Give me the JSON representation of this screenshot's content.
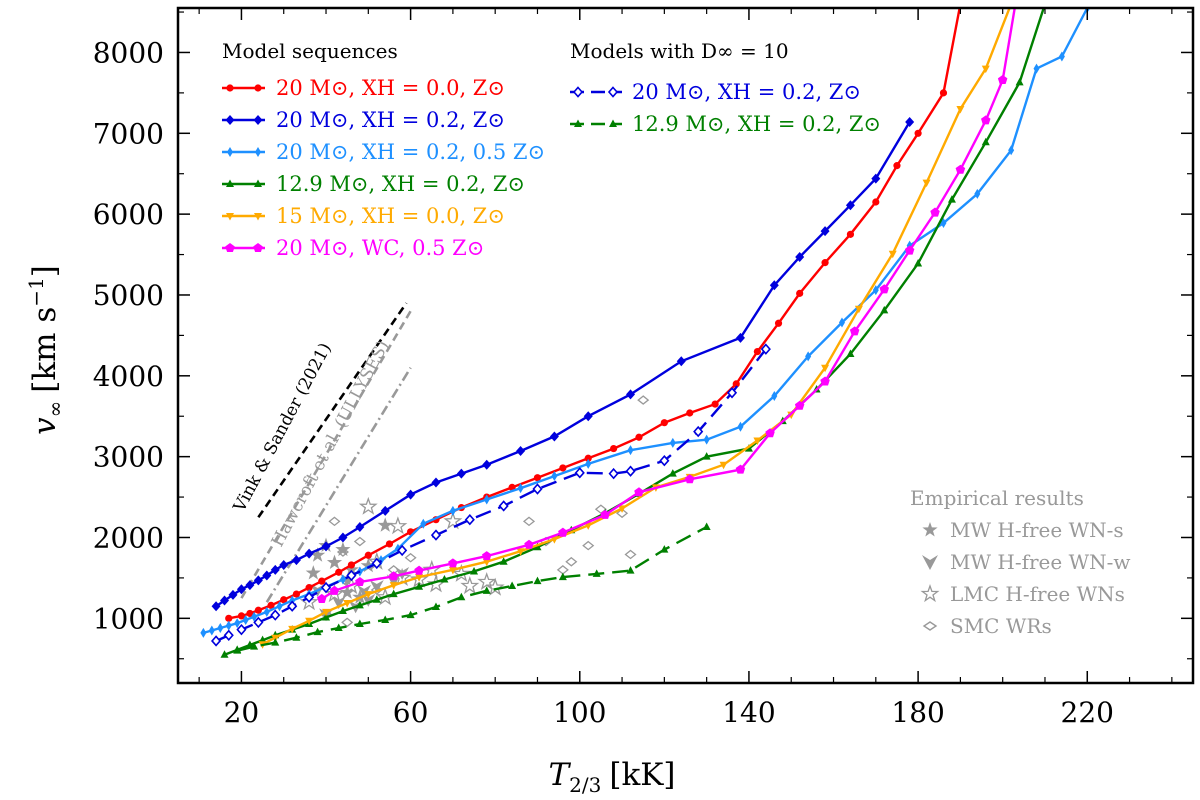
{
  "chart_data": {
    "type": "line",
    "xlabel_main": "T",
    "xlabel_sub": "2/3",
    "xlabel_unit": "[kK]",
    "ylabel_main": "v",
    "ylabel_sub": "∞",
    "ylabel_unit": "[km s",
    "ylabel_exp": "−1",
    "ylabel_close": "]",
    "xlim": [
      5,
      245
    ],
    "ylim": [
      200,
      8550
    ],
    "xticks": [
      20,
      60,
      100,
      140,
      180,
      220
    ],
    "xtick_labels": [
      "20",
      "60",
      "100",
      "140",
      "180",
      "220"
    ],
    "yticks": [
      1000,
      2000,
      3000,
      4000,
      5000,
      6000,
      7000,
      8000
    ],
    "ytick_labels": [
      "1000",
      "2000",
      "3000",
      "4000",
      "5000",
      "6000",
      "7000",
      "8000"
    ],
    "legend_model": {
      "title": "Model sequences",
      "entries": [
        {
          "label": "20 M⊙, XH = 0.0, Z⊙",
          "color": "#ff0000"
        },
        {
          "label": "20 M⊙, XH = 0.2, Z⊙",
          "color": "#0000dd"
        },
        {
          "label": "20 M⊙, XH = 0.2, 0.5 Z⊙",
          "color": "#1e90ff"
        },
        {
          "label": "12.9 M⊙, XH = 0.2, Z⊙",
          "color": "#008000"
        },
        {
          "label": "15 M⊙, XH = 0.0, Z⊙",
          "color": "#ffaa00"
        },
        {
          "label": "20 M⊙, WC, 0.5 Z⊙",
          "color": "#ff00ff"
        }
      ]
    },
    "legend_dinf": {
      "title": "Models with D∞ = 10",
      "entries": [
        {
          "label": "20 M⊙, XH = 0.2, Z⊙",
          "color": "#0000dd"
        },
        {
          "label": "12.9 M⊙, XH = 0.2, Z⊙",
          "color": "#008000"
        }
      ]
    },
    "legend_empirical": {
      "title": "Empirical results",
      "entries": [
        "MW H-free WN-s",
        "MW H-free WN-w",
        "LMC H-free WNs",
        "SMC WRs"
      ]
    },
    "series": [
      {
        "name": "20 M⊙, XH = 0.0, Z⊙",
        "color": "#ff0000",
        "marker": "circle",
        "x": [
          17,
          20,
          22,
          24,
          27,
          30,
          33,
          36,
          39,
          43,
          46,
          50,
          55,
          60,
          66,
          72,
          78,
          84,
          90,
          96,
          102,
          108,
          114,
          120,
          126,
          132,
          137,
          142,
          147,
          152,
          158,
          164,
          170,
          175,
          180,
          186,
          190
        ],
        "y": [
          1000,
          1030,
          1060,
          1100,
          1160,
          1230,
          1300,
          1380,
          1460,
          1570,
          1660,
          1780,
          1920,
          2070,
          2220,
          2370,
          2500,
          2620,
          2740,
          2860,
          2980,
          3100,
          3240,
          3420,
          3540,
          3650,
          3900,
          4300,
          4650,
          5020,
          5400,
          5750,
          6150,
          6600,
          7000,
          7500,
          8600
        ]
      },
      {
        "name": "20 M⊙, XH = 0.2, Z⊙",
        "color": "#0000dd",
        "marker": "diamond",
        "x": [
          14,
          16,
          18,
          20,
          22,
          24,
          26,
          28,
          30,
          33,
          36,
          40,
          44,
          48,
          54,
          60,
          66,
          72,
          78,
          86,
          94,
          102,
          112,
          124,
          138,
          146,
          152,
          158,
          164,
          170,
          178
        ],
        "y": [
          1150,
          1220,
          1290,
          1360,
          1410,
          1470,
          1530,
          1600,
          1660,
          1720,
          1800,
          1890,
          2000,
          2130,
          2330,
          2530,
          2680,
          2790,
          2900,
          3070,
          3250,
          3500,
          3770,
          4180,
          4470,
          5120,
          5470,
          5790,
          6110,
          6440,
          7140
        ]
      },
      {
        "name": "20 M⊙, XH = 0.2, 0.5 Z⊙",
        "color": "#1e90ff",
        "marker": "thin_diamond",
        "x": [
          11,
          13,
          15,
          17,
          19,
          21,
          23,
          26,
          29,
          32,
          36,
          40,
          44,
          48,
          53,
          57,
          63,
          70,
          78,
          86,
          94,
          102,
          112,
          122,
          130,
          138,
          146,
          154,
          162,
          170,
          178,
          186,
          194,
          202,
          208,
          214,
          220
        ],
        "y": [
          820,
          850,
          880,
          910,
          940,
          980,
          1020,
          1080,
          1150,
          1220,
          1300,
          1390,
          1480,
          1580,
          1720,
          1860,
          2170,
          2330,
          2470,
          2610,
          2760,
          2910,
          3080,
          3170,
          3210,
          3370,
          3750,
          4240,
          4660,
          5060,
          5610,
          5890,
          6250,
          6790,
          7800,
          7950,
          8550
        ]
      },
      {
        "name": "12.9 M⊙, XH = 0.2, Z⊙",
        "color": "#008000",
        "marker": "triangle",
        "x": [
          16,
          19,
          22,
          25,
          28,
          32,
          36,
          40,
          44,
          48,
          52,
          56,
          62,
          68,
          75,
          82,
          90,
          98,
          106,
          114,
          122,
          130,
          140,
          148,
          156,
          164,
          172,
          180,
          188,
          196,
          204,
          210
        ],
        "y": [
          550,
          610,
          670,
          730,
          790,
          860,
          930,
          1010,
          1090,
          1160,
          1230,
          1300,
          1390,
          1480,
          1580,
          1700,
          1880,
          2090,
          2300,
          2540,
          2790,
          3000,
          3100,
          3440,
          3830,
          4270,
          4810,
          5390,
          6180,
          6890,
          7630,
          8600
        ]
      },
      {
        "name": "15 M⊙, XH = 0.0, Z⊙",
        "color": "#ffaa00",
        "marker": "triangle_down",
        "x": [
          25,
          28,
          32,
          36,
          40,
          45,
          50,
          56,
          62,
          70,
          78,
          86,
          94,
          102,
          110,
          118,
          126,
          134,
          142,
          150,
          158,
          166,
          174,
          182,
          190,
          196,
          202
        ],
        "y": [
          680,
          760,
          870,
          970,
          1080,
          1190,
          1300,
          1410,
          1510,
          1600,
          1700,
          1830,
          1980,
          2150,
          2360,
          2620,
          2750,
          2900,
          3200,
          3520,
          4100,
          4830,
          5510,
          6390,
          7300,
          7800,
          8600
        ]
      },
      {
        "name": "20 M⊙, WC, 0.5 Z⊙",
        "color": "#ff00ff",
        "marker": "pentagon",
        "x": [
          39,
          42,
          48,
          56,
          62,
          70,
          78,
          88,
          96,
          106,
          114,
          126,
          138,
          145,
          152,
          158,
          165,
          172,
          178,
          184,
          190,
          196,
          200,
          203
        ],
        "y": [
          1240,
          1340,
          1450,
          1520,
          1590,
          1680,
          1770,
          1910,
          2060,
          2280,
          2560,
          2720,
          2840,
          3290,
          3630,
          3930,
          4550,
          5070,
          5550,
          6020,
          6550,
          7160,
          7660,
          8600
        ]
      },
      {
        "name": "D∞=10: 20 M⊙, XH = 0.2, Z⊙",
        "color": "#0000dd",
        "marker": "open_diamond",
        "dashed": true,
        "x": [
          14,
          17,
          20,
          24,
          28,
          32,
          36,
          40,
          46,
          52,
          58,
          66,
          74,
          82,
          90,
          100,
          108,
          112,
          120,
          128,
          136,
          144
        ],
        "y": [
          720,
          790,
          860,
          950,
          1040,
          1150,
          1260,
          1380,
          1530,
          1680,
          1840,
          2030,
          2220,
          2390,
          2600,
          2800,
          2790,
          2820,
          2950,
          3310,
          3790,
          4330
        ]
      },
      {
        "name": "D∞=10: 12.9 M⊙, XH = 0.2, Z⊙",
        "color": "#008000",
        "marker": "triangle",
        "dashed": true,
        "x": [
          19,
          23,
          28,
          33,
          38,
          43,
          48,
          54,
          60,
          66,
          72,
          78,
          84,
          90,
          96,
          104,
          112,
          120,
          130
        ],
        "y": [
          600,
          650,
          700,
          760,
          830,
          880,
          930,
          980,
          1040,
          1140,
          1260,
          1340,
          1400,
          1460,
          1510,
          1550,
          1590,
          1850,
          2130
        ]
      }
    ],
    "reference_lines": [
      {
        "label": "Vink & Sander (2021)",
        "x": [
          24,
          59
        ],
        "y": [
          2250,
          4900
        ],
        "style": "dashed",
        "color": "#000000"
      },
      {
        "label": "Hawcroft et al. (ULLYSES)",
        "x": [
          20,
          60
        ],
        "y": [
          1250,
          4800
        ],
        "style": "dashed",
        "color": "#999999"
      },
      {
        "label": "",
        "x": [
          26,
          60
        ],
        "y": [
          1200,
          4100
        ],
        "style": "dashdot",
        "color": "#999999"
      }
    ],
    "empirical": {
      "wn_s": [
        [
          38,
          1780
        ],
        [
          40,
          1900
        ],
        [
          42,
          1690
        ],
        [
          46,
          1600
        ],
        [
          50,
          1650
        ],
        [
          54,
          2150
        ],
        [
          45,
          1320
        ],
        [
          37,
          1560
        ],
        [
          48,
          1260
        ],
        [
          44,
          1850
        ]
      ],
      "wn_w": [
        [
          40,
          1050
        ],
        [
          43,
          1200
        ],
        [
          47,
          1150
        ],
        [
          49,
          1340
        ],
        [
          52,
          1400
        ],
        [
          56,
          1470
        ],
        [
          45,
          1480
        ],
        [
          50,
          1230
        ],
        [
          58,
          1560
        ],
        [
          38,
          1350
        ]
      ],
      "lmc": [
        [
          36,
          1200
        ],
        [
          42,
          1300
        ],
        [
          50,
          2380
        ],
        [
          54,
          1260
        ],
        [
          58,
          1500
        ],
        [
          62,
          1480
        ],
        [
          65,
          1600
        ],
        [
          70,
          2200
        ],
        [
          72,
          1550
        ],
        [
          74,
          1400
        ],
        [
          78,
          1450
        ],
        [
          80,
          1380
        ],
        [
          52,
          1700
        ],
        [
          46,
          1400
        ],
        [
          57,
          2140
        ],
        [
          66,
          1420
        ]
      ],
      "smc": [
        [
          40,
          1050
        ],
        [
          42,
          2200
        ],
        [
          44,
          1820
        ],
        [
          48,
          1950
        ],
        [
          52,
          1350
        ],
        [
          45,
          950
        ],
        [
          56,
          1600
        ],
        [
          60,
          1750
        ],
        [
          88,
          2200
        ],
        [
          92,
          1950
        ],
        [
          98,
          1700
        ],
        [
          105,
          2350
        ],
        [
          112,
          1790
        ],
        [
          115,
          3700
        ],
        [
          110,
          2300
        ],
        [
          96,
          1600
        ],
        [
          102,
          1900
        ]
      ]
    }
  }
}
